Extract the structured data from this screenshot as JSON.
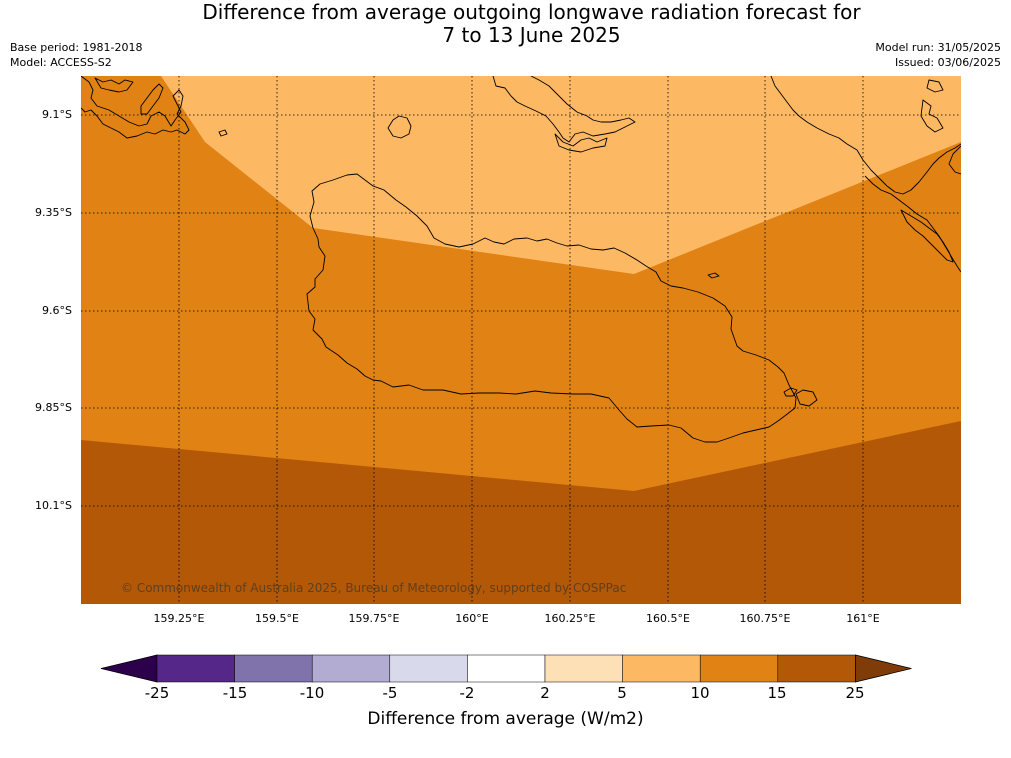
{
  "title": {
    "line1": "Difference from average outgoing longwave radiation forecast for",
    "line2": "7 to 13 June 2025"
  },
  "meta": {
    "base_period": "Base period: 1981-2018",
    "model": "Model: ACCESS-S2",
    "model_run": "Model run: 31/05/2025",
    "issued": "Issued: 03/06/2025"
  },
  "copyright": "© Commonwealth of Australia 2025, Bureau of Meteorology, supported by COSPPac",
  "map": {
    "lat_ticks": [
      "9.1°S",
      "9.35°S",
      "9.6°S",
      "9.85°S",
      "10.1°S"
    ],
    "lon_ticks": [
      "159.25°E",
      "159.5°E",
      "159.75°E",
      "160°E",
      "160.25°E",
      "160.5°E",
      "160.75°E",
      "161°E"
    ],
    "colors": {
      "lightest": "#fdb863",
      "mid": "#e08214",
      "darkest": "#b35806",
      "coast": "#000000"
    }
  },
  "colorbar": {
    "label": "Difference from average (W/m2)",
    "ticks": [
      "-25",
      "-15",
      "-10",
      "-5",
      "-2",
      "2",
      "5",
      "10",
      "15",
      "25"
    ],
    "colors": [
      "#2d004b",
      "#542788",
      "#8073ac",
      "#b2abd2",
      "#d8daeb",
      "#ffffff",
      "#fee0b6",
      "#fdb863",
      "#e08214",
      "#b35806",
      "#7f3b08"
    ]
  }
}
